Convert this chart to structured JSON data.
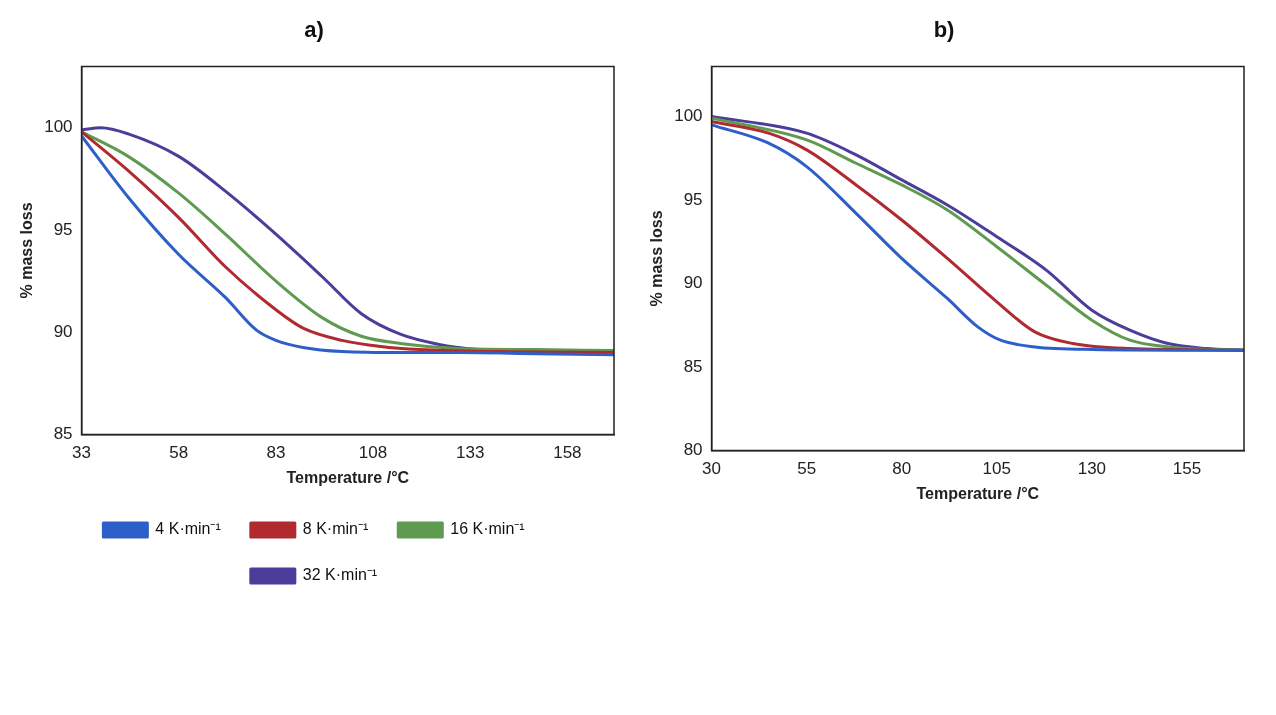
{
  "chart_data": [
    {
      "type": "line",
      "title": "a)",
      "xlabel": "Temperature /°C",
      "ylabel": "% mass loss",
      "xlim": [
        33,
        170
      ],
      "xticks": [
        33,
        58,
        83,
        108,
        133,
        158
      ],
      "ylim": [
        85,
        103
      ],
      "yticks": [
        85,
        90,
        95,
        100
      ],
      "grid": false,
      "legend": "bottom",
      "marker": "none",
      "line_style": "solid",
      "series": [
        {
          "name": "4 K·min⁻¹",
          "color": "#2e5fc9",
          "x": [
            33,
            45,
            58,
            70,
            78,
            83,
            90,
            100,
            115,
            130,
            150,
            170
          ],
          "values": [
            99.6,
            96.6,
            93.8,
            91.7,
            90.1,
            89.6,
            89.25,
            89.05,
            89.0,
            89.0,
            88.95,
            88.9
          ]
        },
        {
          "name": "8 K·min⁻¹",
          "color": "#b02a30",
          "x": [
            33,
            45,
            58,
            70,
            83,
            90,
            100,
            110,
            120,
            140,
            170
          ],
          "values": [
            99.8,
            97.9,
            95.6,
            93.2,
            91.1,
            90.2,
            89.6,
            89.3,
            89.15,
            89.05,
            89.0
          ]
        },
        {
          "name": "16 K·min⁻¹",
          "color": "#5e9a4f",
          "x": [
            33,
            45,
            58,
            70,
            83,
            95,
            105,
            115,
            130,
            150,
            170
          ],
          "values": [
            99.8,
            98.6,
            96.8,
            94.8,
            92.5,
            90.7,
            89.8,
            89.45,
            89.2,
            89.15,
            89.1
          ]
        },
        {
          "name": "32 K·min⁻¹",
          "color": "#4b3d9a",
          "x": [
            33,
            38,
            45,
            58,
            70,
            83,
            95,
            105,
            115,
            125,
            135,
            150,
            170
          ],
          "values": [
            99.9,
            100.0,
            99.7,
            98.6,
            96.9,
            94.8,
            92.7,
            90.9,
            89.9,
            89.4,
            89.15,
            89.0,
            88.95
          ]
        }
      ]
    },
    {
      "type": "line",
      "title": "b)",
      "xlabel": "Temperature /°C",
      "ylabel": "% mass loss",
      "xlim": [
        30,
        170
      ],
      "xticks": [
        30,
        55,
        80,
        105,
        130,
        155
      ],
      "ylim": [
        80,
        103
      ],
      "yticks": [
        80,
        85,
        90,
        95,
        100
      ],
      "grid": false,
      "marker": "none",
      "line_style": "solid",
      "series": [
        {
          "color": "#2e5fc9",
          "x": [
            30,
            45,
            55,
            68,
            80,
            92,
            100,
            106,
            115,
            130,
            170
          ],
          "values": [
            99.5,
            98.4,
            97.0,
            94.2,
            91.5,
            89.1,
            87.4,
            86.6,
            86.2,
            86.05,
            86.0
          ]
        },
        {
          "color": "#b02a30",
          "x": [
            30,
            45,
            55,
            68,
            80,
            92,
            105,
            115,
            125,
            140,
            170
          ],
          "values": [
            99.7,
            99.0,
            98.0,
            95.9,
            93.8,
            91.5,
            88.9,
            87.1,
            86.4,
            86.1,
            86.0
          ]
        },
        {
          "color": "#5e9a4f",
          "x": [
            30,
            55,
            68,
            80,
            92,
            105,
            118,
            130,
            140,
            150,
            170
          ],
          "values": [
            99.9,
            98.6,
            97.2,
            95.9,
            94.4,
            92.2,
            89.9,
            87.8,
            86.6,
            86.2,
            86.0
          ]
        },
        {
          "color": "#4b3d9a",
          "x": [
            30,
            55,
            68,
            80,
            92,
            105,
            118,
            130,
            140,
            150,
            160,
            170
          ],
          "values": [
            100.0,
            99.0,
            97.7,
            96.2,
            94.7,
            92.8,
            90.8,
            88.4,
            87.2,
            86.4,
            86.1,
            86.0
          ]
        }
      ]
    }
  ]
}
